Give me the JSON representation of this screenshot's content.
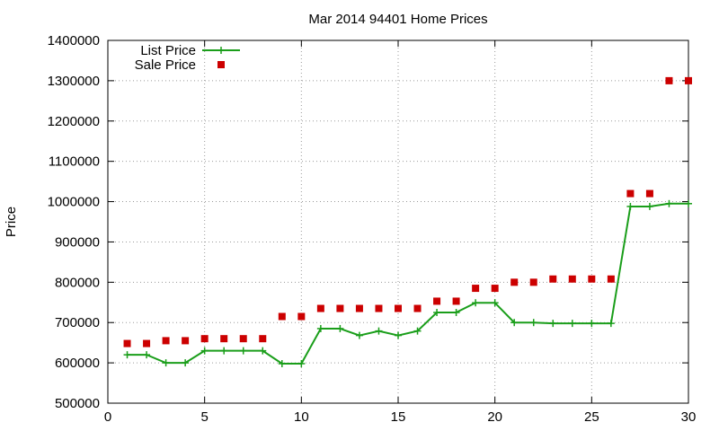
{
  "chart_data": {
    "type": "line",
    "title": "Mar 2014 94401 Home Prices",
    "xlabel": "",
    "ylabel": "Price",
    "xlim": [
      0,
      30
    ],
    "ylim": [
      500000,
      1400000
    ],
    "grid": true,
    "legend_position": "top-left",
    "x_ticks": [
      "0",
      "5",
      "10",
      "15",
      "20",
      "25",
      "30"
    ],
    "y_ticks": [
      "500000",
      "600000",
      "700000",
      "800000",
      "900000",
      "1000000",
      "1100000",
      "1200000",
      "1300000",
      "1400000"
    ],
    "series": [
      {
        "name": "List Price",
        "style": "line-plus",
        "color": "#1a9e1a",
        "x": [
          1,
          2,
          3,
          4,
          5,
          6,
          7,
          8,
          9,
          10,
          11,
          12,
          13,
          14,
          15,
          16,
          17,
          18,
          19,
          20,
          21,
          22,
          23,
          24,
          25,
          26,
          27,
          28,
          29,
          30
        ],
        "y": [
          620000,
          620000,
          600000,
          600000,
          630000,
          630000,
          630000,
          630000,
          598000,
          598000,
          685000,
          685000,
          668000,
          679000,
          668000,
          679000,
          725000,
          725000,
          749000,
          749000,
          700000,
          700000,
          698000,
          698000,
          698000,
          698000,
          988000,
          988000,
          995000,
          995000
        ]
      },
      {
        "name": "Sale Price",
        "style": "square-points",
        "color": "#cc0000",
        "x": [
          1,
          2,
          3,
          4,
          5,
          6,
          7,
          8,
          9,
          10,
          11,
          12,
          13,
          14,
          15,
          16,
          17,
          18,
          19,
          20,
          21,
          22,
          23,
          24,
          25,
          26,
          27,
          28,
          29,
          30
        ],
        "y": [
          648000,
          648000,
          655000,
          655000,
          660000,
          660000,
          660000,
          660000,
          715000,
          715000,
          735000,
          735000,
          735000,
          735000,
          735000,
          735000,
          753000,
          753000,
          785000,
          785000,
          800000,
          800000,
          808000,
          808000,
          808000,
          808000,
          1020000,
          1020000,
          1300000,
          1300000
        ]
      }
    ]
  }
}
